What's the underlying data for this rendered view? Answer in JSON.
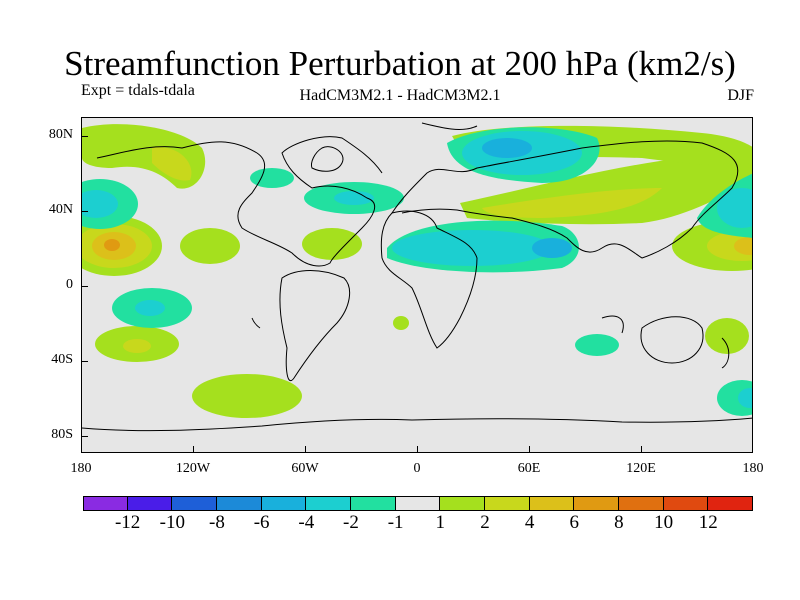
{
  "title": "Streamfunction Perturbation at 200 hPa (km2/s)",
  "expt_label": "Expt = tdals-tdala",
  "model_label": "HadCM3M2.1 - HadCM3M2.1",
  "season_label": "DJF",
  "lat_labels": [
    "80N",
    "40N",
    "0",
    "40S",
    "80S"
  ],
  "lon_labels": [
    "180",
    "120W",
    "60W",
    "0",
    "60E",
    "120E",
    "180"
  ],
  "colorbar": {
    "colors": [
      "#8a2be2",
      "#4a1de8",
      "#1e5fd8",
      "#1c8ad8",
      "#19b0dc",
      "#1ccfd0",
      "#22e0a0",
      "#e6e6e6",
      "#a5e01e",
      "#c8d81c",
      "#dcc01a",
      "#e09a12",
      "#e07010",
      "#e04a10",
      "#e02410"
    ],
    "labels": [
      "-12",
      "-10",
      "-8",
      "-6",
      "-4",
      "-2",
      "-1",
      "1",
      "2",
      "4",
      "6",
      "8",
      "10",
      "12"
    ]
  }
}
